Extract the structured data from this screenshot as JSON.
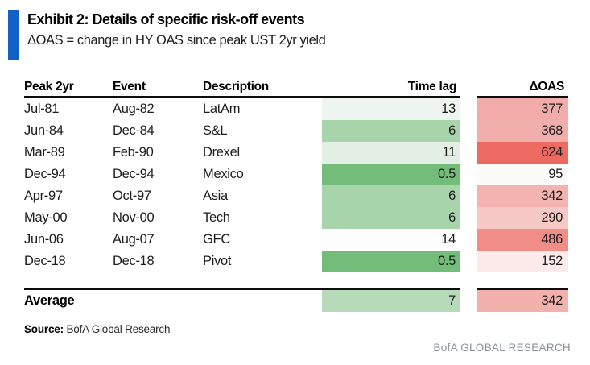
{
  "colors": {
    "accent_bar": "#1361c6",
    "line": "#0d0d0d",
    "brand_gray": "#8b9197"
  },
  "header": {
    "title": "Exhibit 2: Details of specific risk-off events",
    "subtitle": "ΔOAS = change in HY OAS since peak UST 2yr yield"
  },
  "table": {
    "columns": [
      "Peak 2yr",
      "Event",
      "Description",
      "Time lag",
      "ΔOAS"
    ],
    "rows": [
      {
        "peak_2yr": "Jul-81",
        "event": "Aug-82",
        "description": "LatAm",
        "time_lag": "13",
        "time_lag_color": "#edf5ee",
        "oas": "377",
        "oas_color": "#f1aba8"
      },
      {
        "peak_2yr": "Jun-84",
        "event": "Dec-84",
        "description": "S&L",
        "time_lag": "6",
        "time_lag_color": "#a8d4ab",
        "oas": "368",
        "oas_color": "#f2aeab"
      },
      {
        "peak_2yr": "Mar-89",
        "event": "Feb-90",
        "description": "Drexel",
        "time_lag": "11",
        "time_lag_color": "#e3efe4",
        "oas": "624",
        "oas_color": "#ec6a61"
      },
      {
        "peak_2yr": "Dec-94",
        "event": "Dec-94",
        "description": "Mexico",
        "time_lag": "0.5",
        "time_lag_color": "#74bc79",
        "oas": "95",
        "oas_color": "#fdfafa"
      },
      {
        "peak_2yr": "Apr-97",
        "event": "Oct-97",
        "description": "Asia",
        "time_lag": "6",
        "time_lag_color": "#a8d4ab",
        "oas": "342",
        "oas_color": "#f4b3b0"
      },
      {
        "peak_2yr": "May-00",
        "event": "Nov-00",
        "description": "Tech",
        "time_lag": "6",
        "time_lag_color": "#a8d4ab",
        "oas": "290",
        "oas_color": "#f7c9c6"
      },
      {
        "peak_2yr": "Jun-06",
        "event": "Aug-07",
        "description": "GFC",
        "time_lag": "14",
        "time_lag_color": "#fdfefd",
        "oas": "486",
        "oas_color": "#ef8d86"
      },
      {
        "peak_2yr": "Dec-18",
        "event": "Dec-18",
        "description": "Pivot",
        "time_lag": "0.5",
        "time_lag_color": "#74bc79",
        "oas": "152",
        "oas_color": "#fcebea"
      }
    ],
    "average": {
      "label": "Average",
      "time_lag": "7",
      "time_lag_color": "#b7dbb9",
      "oas": "342",
      "oas_color": "#f3b1ae"
    }
  },
  "footer": {
    "source_label": "Source:",
    "source_text": "BofA Global Research",
    "brand": "BofA GLOBAL RESEARCH"
  },
  "chart_data": {
    "type": "table",
    "title": "Exhibit 2: Details of specific risk-off events",
    "subtitle": "ΔOAS = change in HY OAS since peak UST 2yr yield",
    "columns": [
      "Peak 2yr",
      "Event",
      "Description",
      "Time lag",
      "ΔOAS"
    ],
    "rows": [
      [
        "Jul-81",
        "Aug-82",
        "LatAm",
        13,
        377
      ],
      [
        "Jun-84",
        "Dec-84",
        "S&L",
        6,
        368
      ],
      [
        "Mar-89",
        "Feb-90",
        "Drexel",
        11,
        624
      ],
      [
        "Dec-94",
        "Dec-94",
        "Mexico",
        0.5,
        95
      ],
      [
        "Apr-97",
        "Oct-97",
        "Asia",
        6,
        342
      ],
      [
        "May-00",
        "Nov-00",
        "Tech",
        6,
        290
      ],
      [
        "Jun-06",
        "Aug-07",
        "GFC",
        14,
        486
      ],
      [
        "Dec-18",
        "Dec-18",
        "Pivot",
        0.5,
        152
      ]
    ],
    "average_row": {
      "label": "Average",
      "time_lag": 7,
      "oas": 342
    },
    "heatmaps": {
      "time_lag": "green scale, low value = dark green, high value = white",
      "oas": "red scale, high value = dark red, low value = white"
    },
    "source": "BofA Global Research"
  }
}
